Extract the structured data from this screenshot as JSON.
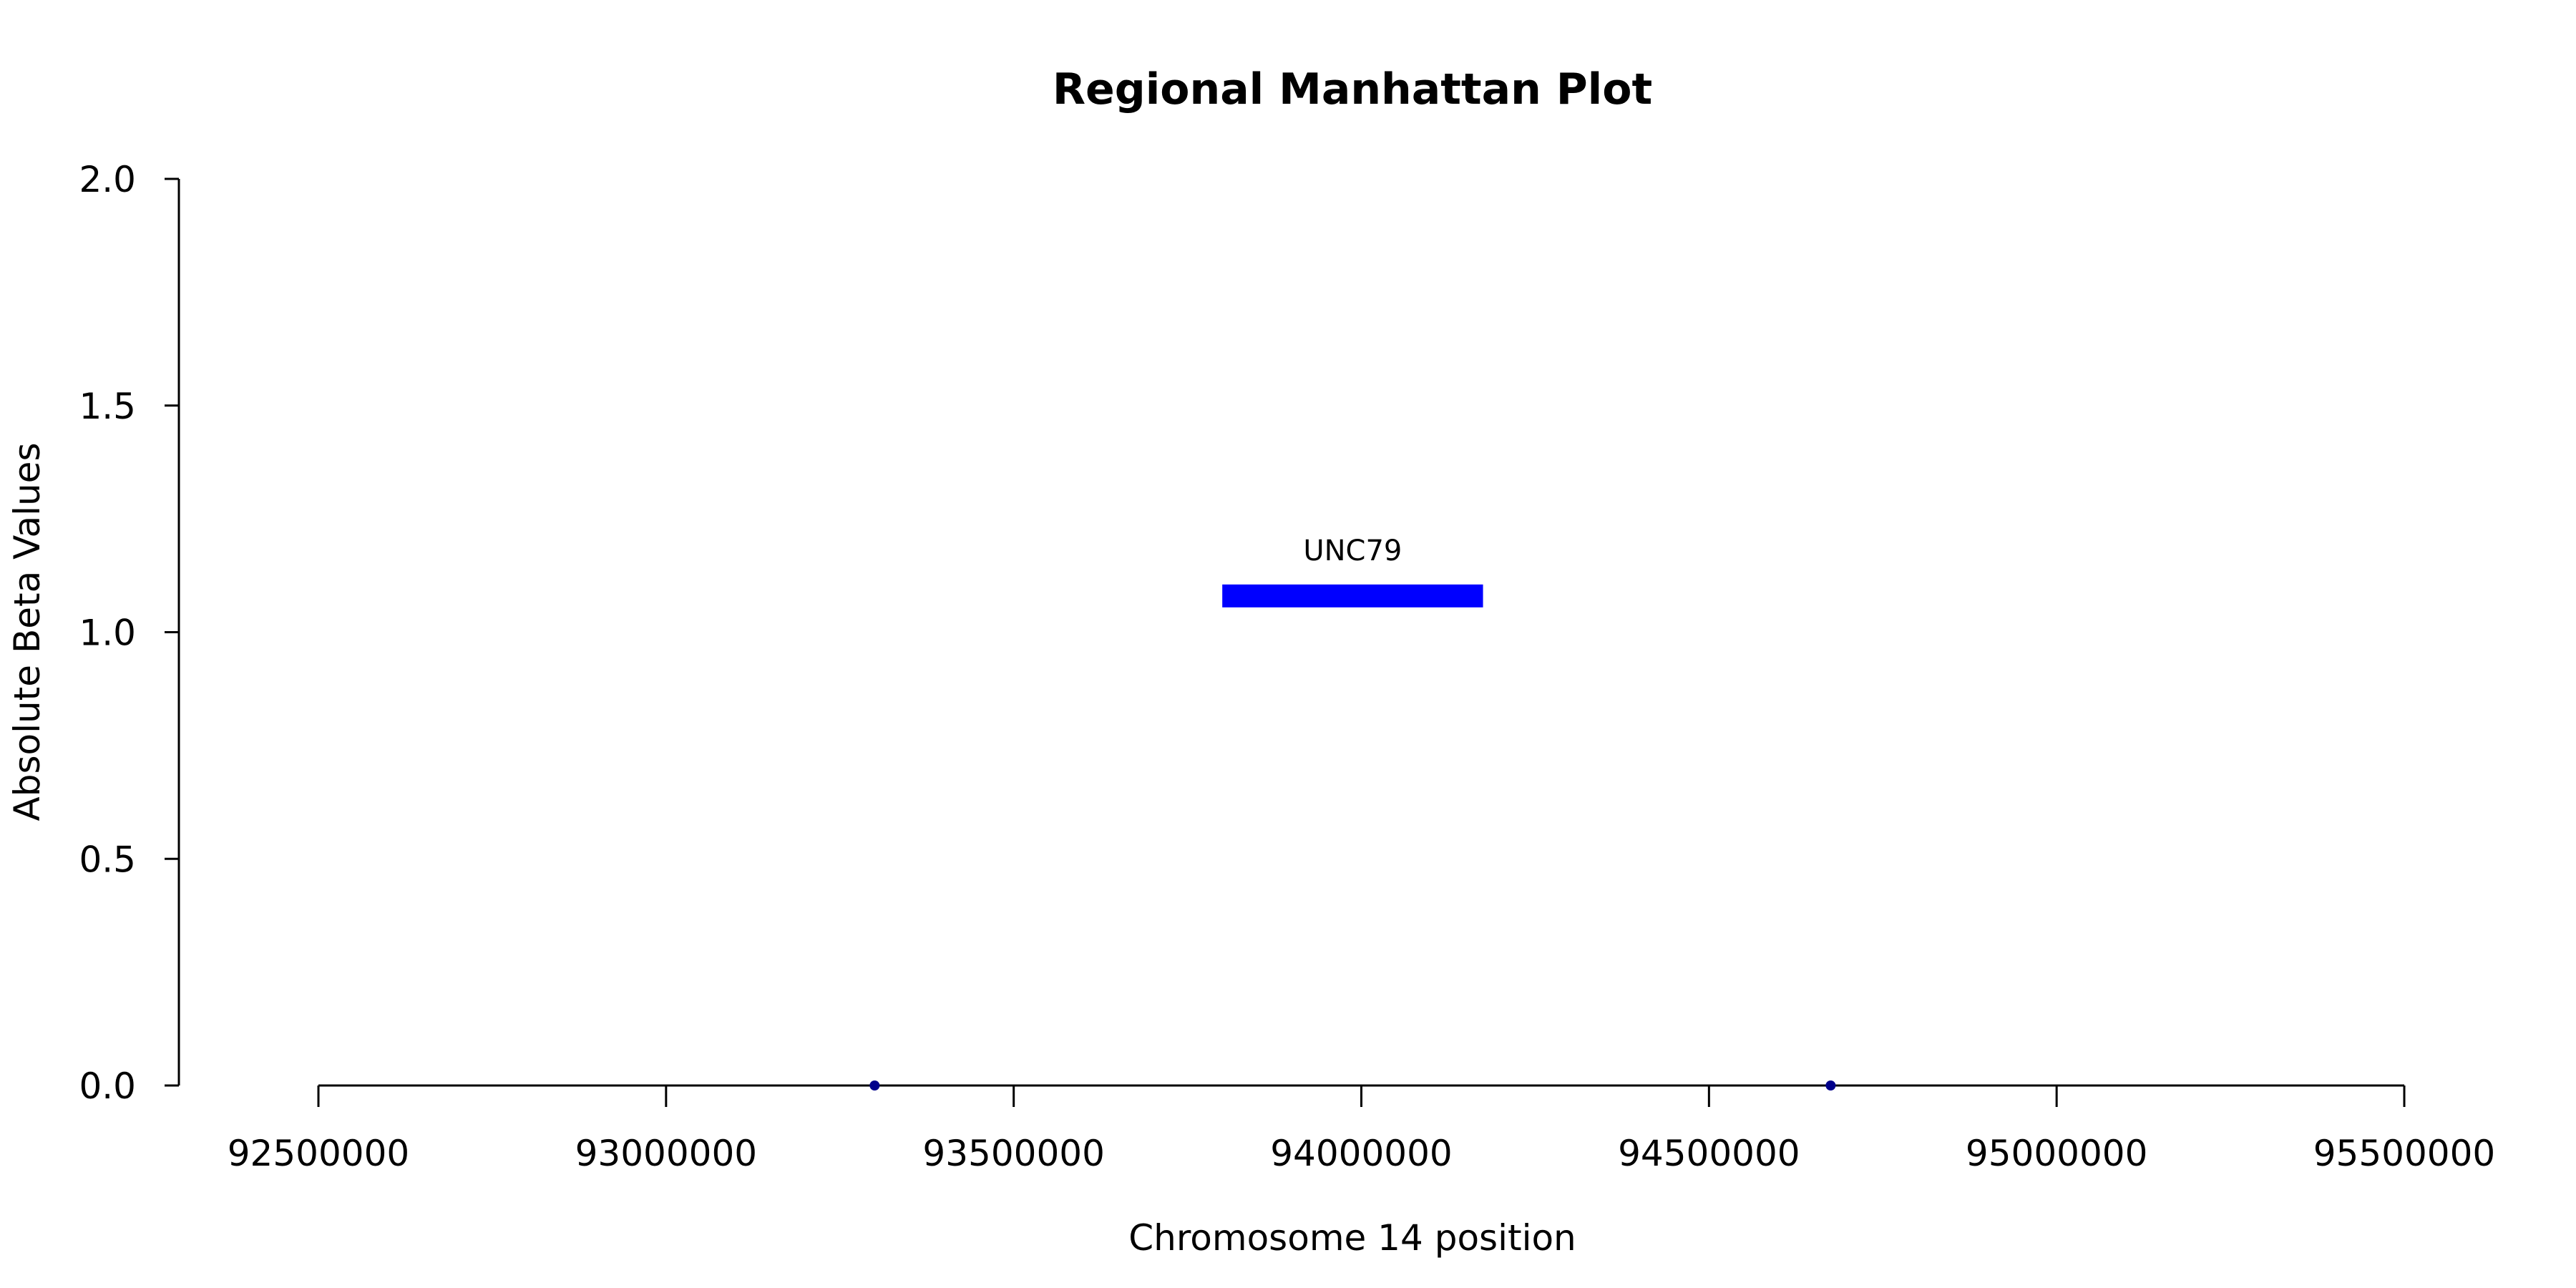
{
  "chart_data": {
    "type": "scatter",
    "title": "Regional Manhattan Plot",
    "xlabel": "Chromosome 14 position",
    "ylabel": "Absolute Beta Values",
    "xlim": [
      92500000,
      95500000
    ],
    "ylim": [
      0,
      2
    ],
    "xticks": [
      92500000,
      93000000,
      93500000,
      94000000,
      94500000,
      95000000,
      95500000
    ],
    "xtick_labels": [
      "92500000",
      "93000000",
      "93500000",
      "94000000",
      "94500000",
      "95000000",
      "95500000"
    ],
    "yticks": [
      0,
      0.5,
      1,
      1.5,
      2
    ],
    "ytick_labels": [
      "0.0",
      "0.5",
      "1.0",
      "1.5",
      "2.0"
    ],
    "points": [
      {
        "x": 93300000,
        "y": 0.0
      },
      {
        "x": 94675000,
        "y": 0.0
      }
    ],
    "point_color": "#00008b",
    "genes": [
      {
        "name": "UNC79",
        "start": 93800000,
        "end": 94175000,
        "y": 1.08
      }
    ],
    "gene_color": "#0000ff",
    "grid": false
  }
}
